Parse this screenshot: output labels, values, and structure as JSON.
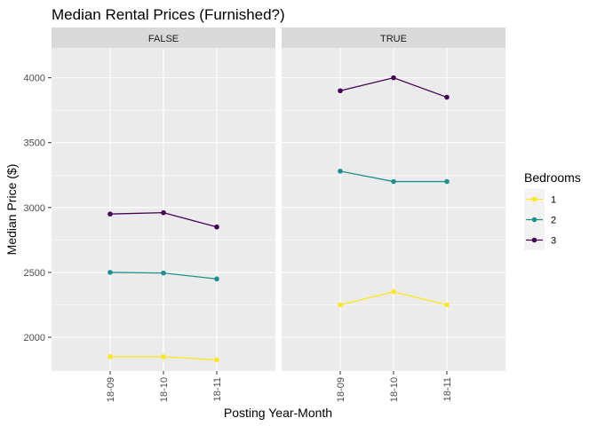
{
  "chart_data": {
    "type": "line",
    "title": "Median Rental Prices (Furnished?)",
    "xlabel": "Posting Year-Month",
    "ylabel": "Median Price ($)",
    "categories": [
      "18-09",
      "18-10",
      "18-11"
    ],
    "ylim": [
      1740,
      4230
    ],
    "yticks": [
      2000,
      2500,
      3000,
      3500,
      4000
    ],
    "grid": true,
    "legend": {
      "title": "Bedrooms",
      "placement": "right",
      "entries": [
        {
          "label": "1",
          "color": "#fde725"
        },
        {
          "label": "2",
          "color": "#21908c"
        },
        {
          "label": "3",
          "color": "#440154"
        }
      ]
    },
    "panels": [
      {
        "strip": "FALSE",
        "series": [
          {
            "name": "1",
            "color": "#fde725",
            "values": [
              1850,
              1850,
              1825
            ]
          },
          {
            "name": "2",
            "color": "#21908c",
            "values": [
              2500,
              2495,
              2450
            ]
          },
          {
            "name": "3",
            "color": "#440154",
            "values": [
              2950,
              2960,
              2850
            ]
          }
        ]
      },
      {
        "strip": "TRUE",
        "series": [
          {
            "name": "1",
            "color": "#fde725",
            "values": [
              2250,
              2350,
              2250
            ]
          },
          {
            "name": "2",
            "color": "#21908c",
            "values": [
              3280,
              3200,
              3200
            ]
          },
          {
            "name": "3",
            "color": "#440154",
            "values": [
              3900,
              4000,
              3850
            ]
          }
        ]
      }
    ]
  }
}
